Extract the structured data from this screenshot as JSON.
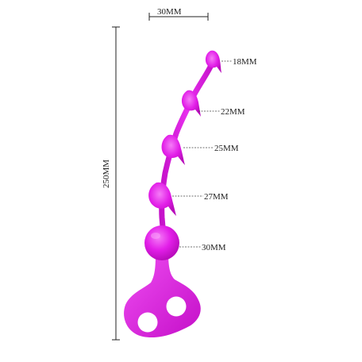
{
  "dimensions": {
    "width": "30MM",
    "height": "250MM",
    "beads": [
      "18MM",
      "22MM",
      "25MM",
      "27MM",
      "30MM"
    ]
  },
  "colors": {
    "product": "#e21ee8",
    "product_highlight": "#f05df3",
    "product_shadow": "#b90cbc",
    "lines": "#222222",
    "background": "#ffffff"
  }
}
